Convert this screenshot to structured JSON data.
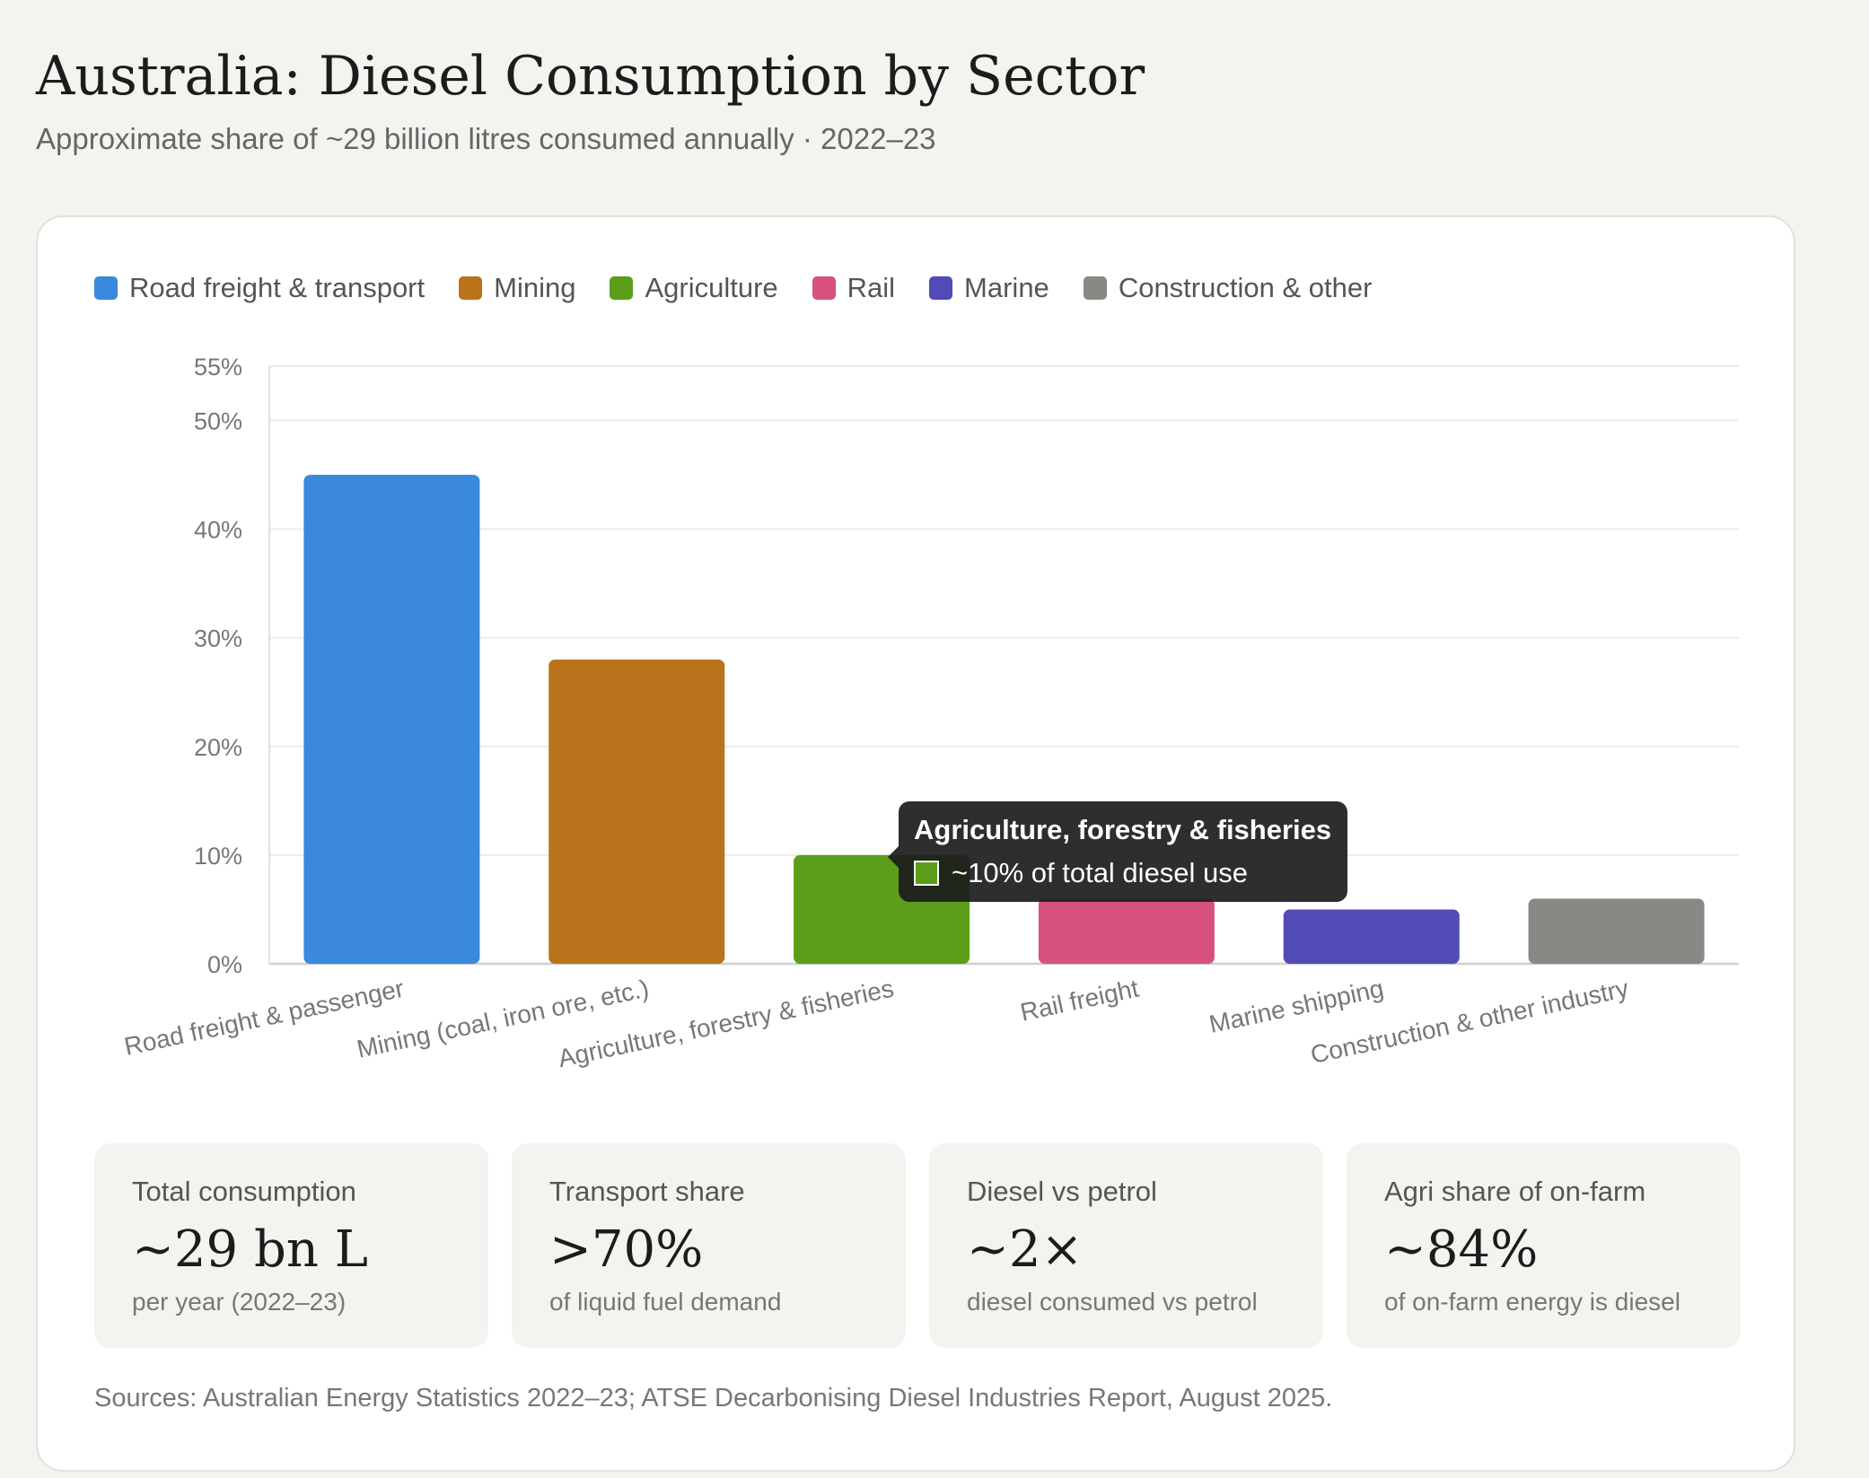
{
  "header": {
    "title": "Australia: Diesel Consumption by Sector",
    "subtitle": "Approximate share of ~29 billion litres consumed annually · 2022–23"
  },
  "legend": [
    {
      "label": "Road freight & transport",
      "color": "#3a89dd"
    },
    {
      "label": "Mining",
      "color": "#b8731b"
    },
    {
      "label": "Agriculture",
      "color": "#5c9e1a"
    },
    {
      "label": "Rail",
      "color": "#d6527c"
    },
    {
      "label": "Marine",
      "color": "#524ab5"
    },
    {
      "label": "Construction & other",
      "color": "#8a8884"
    }
  ],
  "chart_data": {
    "type": "bar",
    "categories": [
      "Road freight & passenger",
      "Mining (coal, iron ore, etc.)",
      "Agriculture, forestry & fisheries",
      "Rail freight",
      "Marine shipping",
      "Construction & other industry"
    ],
    "values": [
      45,
      28,
      10,
      6,
      5,
      6
    ],
    "colors": [
      "#3a89dd",
      "#b8731b",
      "#5c9e1a",
      "#d6527c",
      "#524ab5",
      "#8a8884"
    ],
    "yticks": [
      0,
      10,
      20,
      30,
      40,
      50,
      55
    ],
    "ytick_labels": [
      "0%",
      "10%",
      "20%",
      "30%",
      "40%",
      "50%",
      "55%"
    ],
    "ylim": [
      0,
      55
    ],
    "grid": true,
    "legend_position": "top-left"
  },
  "tooltip": {
    "title": "Agriculture, forestry & fisheries",
    "text": "~10% of total diesel use",
    "color": "#5c9e1a"
  },
  "stats": [
    {
      "label": "Total consumption",
      "value": "~29 bn L",
      "note": "per year (2022–23)"
    },
    {
      "label": "Transport share",
      "value": ">70%",
      "note": "of liquid fuel demand"
    },
    {
      "label": "Diesel vs petrol",
      "value": "~2×",
      "note": "diesel consumed vs petrol"
    },
    {
      "label": "Agri share of on-farm",
      "value": "~84%",
      "note": "of on-farm energy is diesel"
    }
  ],
  "sources": "Sources: Australian Energy Statistics 2022–23; ATSE Decarbonising Diesel Industries Report, August 2025."
}
